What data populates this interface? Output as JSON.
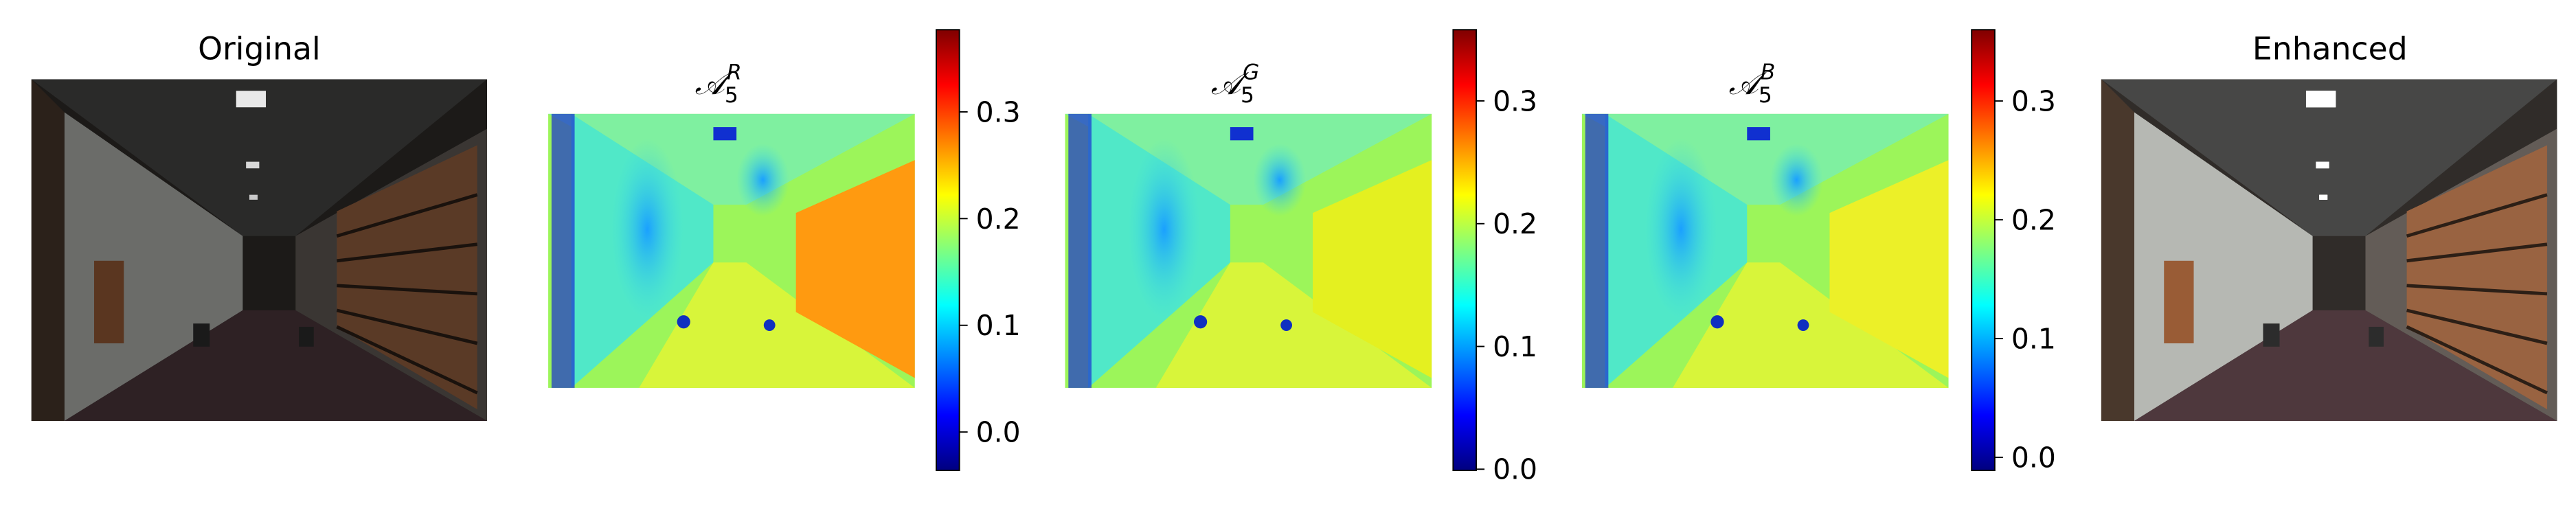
{
  "panels": [
    {
      "title": "Original"
    },
    {
      "title_base": "𝒜",
      "title_sub": "5",
      "title_sup": "R",
      "colorbar": {
        "lim": [
          -0.036,
          0.377
        ],
        "ticks": [
          {
            "value": 0,
            "label": "0.0"
          },
          0.1,
          0.2,
          0.3
        ]
      }
    },
    {
      "title_base": "𝒜",
      "title_sub": "5",
      "title_sup": "G",
      "colorbar": {
        "lim": [
          -0.001,
          0.358
        ],
        "ticks": [
          {
            "value": 0,
            "label": "0.0"
          },
          0.1,
          0.2,
          0.3
        ]
      }
    },
    {
      "title_base": "𝒜",
      "title_sub": "5",
      "title_sup": "B",
      "colorbar": {
        "lim": [
          -0.011,
          0.36
        ],
        "ticks": [
          {
            "value": 0,
            "label": "0.0"
          },
          0.1,
          0.2,
          0.3
        ]
      }
    },
    {
      "title": "Enhanced"
    }
  ]
}
